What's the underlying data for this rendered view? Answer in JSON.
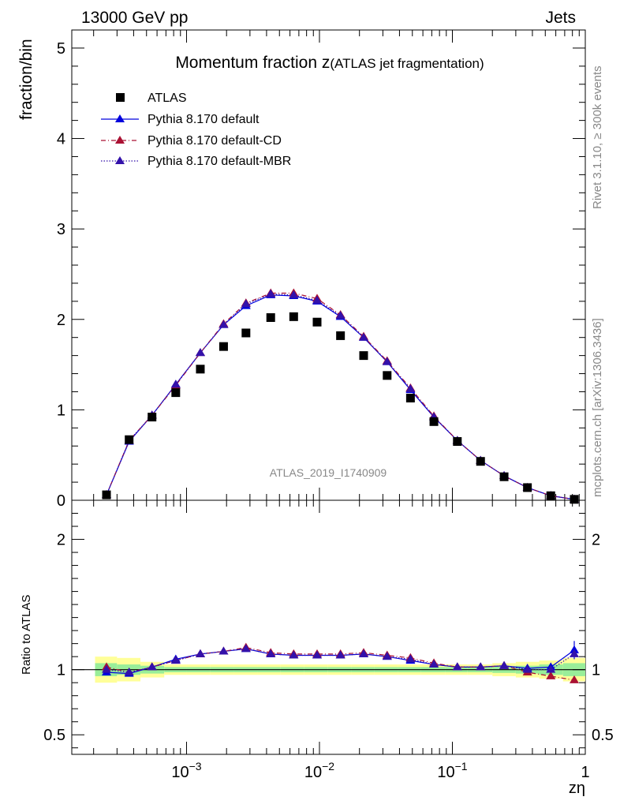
{
  "header": {
    "left": "13000 GeV pp",
    "right": "Jets",
    "rivet": "Rivet 3.1.10, ≥ 300k events",
    "source": "mcplots.cern.ch [arXiv:1306.3436]",
    "analysis": "ATLAS_2019_I1740909"
  },
  "chart_data": {
    "type": "scatter",
    "title_main": "Momentum fraction z",
    "title_sub": "(ATLAS jet fragmentation)",
    "xlabel": "zη",
    "ylabel_main": "fraction/bin",
    "ylabel_ratio": "Ratio to ATLAS",
    "xscale": "log",
    "xlim": [
      0.000137,
      1.0
    ],
    "ylim_main": [
      0,
      5.2
    ],
    "ylim_ratio": [
      0.35,
      2.3
    ],
    "main_ticks": [
      "0",
      "1",
      "2",
      "3",
      "4",
      "5"
    ],
    "main_tick_values": [
      0,
      1,
      2,
      3,
      4,
      5
    ],
    "ratio_ticks": [
      "0.5",
      "1",
      "2"
    ],
    "ratio_tick_values": [
      0.5,
      1,
      2
    ],
    "x_ticks": [
      "10",
      "10",
      "10",
      "1"
    ],
    "x_tick_exps": [
      "−3",
      "−2",
      "−1",
      ""
    ],
    "x_tick_values": [
      0.001,
      0.01,
      0.1,
      1
    ],
    "x": [
      0.00025,
      0.00037,
      0.00055,
      0.00083,
      0.00127,
      0.0019,
      0.0028,
      0.0043,
      0.0064,
      0.0096,
      0.0144,
      0.0215,
      0.0323,
      0.0484,
      0.0726,
      0.109,
      0.163,
      0.245,
      0.367,
      0.55,
      0.826
    ],
    "series": [
      {
        "name": "ATLAS",
        "style": "data",
        "color": "#000000",
        "values": [
          0.06,
          0.67,
          0.92,
          1.19,
          1.45,
          1.7,
          1.85,
          2.02,
          2.03,
          1.97,
          1.82,
          1.6,
          1.38,
          1.13,
          0.87,
          0.65,
          0.43,
          0.26,
          0.14,
          0.05,
          0.01
        ],
        "ratio": [
          1,
          1,
          1,
          1,
          1,
          1,
          1,
          1,
          1,
          1,
          1,
          1,
          1,
          1,
          1,
          1,
          1,
          1,
          1,
          1,
          1
        ]
      },
      {
        "name": "Pythia 8.170 default",
        "style": "solid",
        "color": "#0000dd",
        "values": [
          0.06,
          0.65,
          0.94,
          1.28,
          1.63,
          1.94,
          2.15,
          2.27,
          2.26,
          2.2,
          2.03,
          1.8,
          1.53,
          1.22,
          0.92,
          0.66,
          0.44,
          0.27,
          0.14,
          0.05,
          0.01
        ],
        "ratio": [
          0.98,
          0.97,
          1.02,
          1.08,
          1.12,
          1.14,
          1.16,
          1.12,
          1.11,
          1.11,
          1.11,
          1.12,
          1.1,
          1.07,
          1.04,
          1.02,
          1.02,
          1.03,
          1.01,
          1.02,
          1.15
        ]
      },
      {
        "name": "Pythia 8.170 default-CD",
        "style": "dashdot",
        "color": "#aa1133",
        "values": [
          0.06,
          0.66,
          0.94,
          1.27,
          1.63,
          1.95,
          2.18,
          2.29,
          2.29,
          2.23,
          2.05,
          1.81,
          1.54,
          1.24,
          0.93,
          0.66,
          0.44,
          0.27,
          0.14,
          0.05,
          0.01
        ],
        "ratio": [
          1.02,
          0.98,
          1.02,
          1.07,
          1.12,
          1.14,
          1.17,
          1.13,
          1.12,
          1.12,
          1.12,
          1.13,
          1.11,
          1.09,
          1.05,
          1.02,
          1.02,
          1.03,
          0.98,
          0.95,
          0.92
        ]
      },
      {
        "name": "Pythia 8.170 default-MBR",
        "style": "dotted",
        "color": "#3311aa",
        "values": [
          0.06,
          0.66,
          0.94,
          1.28,
          1.63,
          1.94,
          2.17,
          2.28,
          2.27,
          2.21,
          2.04,
          1.8,
          1.53,
          1.23,
          0.92,
          0.66,
          0.44,
          0.27,
          0.14,
          0.05,
          0.01
        ],
        "ratio": [
          1.0,
          0.98,
          1.02,
          1.07,
          1.12,
          1.14,
          1.16,
          1.12,
          1.11,
          1.11,
          1.11,
          1.12,
          1.1,
          1.08,
          1.04,
          1.02,
          1.02,
          1.03,
          1.0,
          1.0,
          1.12
        ]
      }
    ],
    "ratio_error_default_last": 0.07,
    "bands": {
      "edges": [
        0.000205,
        0.0003,
        0.00045,
        0.00068,
        0.001,
        0.0015,
        0.00227,
        0.0034,
        0.0051,
        0.0077,
        0.0115,
        0.0173,
        0.026,
        0.039,
        0.058,
        0.088,
        0.13,
        0.2,
        0.3,
        0.45,
        0.68,
        1.0
      ],
      "stat_sys_outer": [
        0.1,
        0.09,
        0.06,
        0.04,
        0.04,
        0.04,
        0.04,
        0.04,
        0.04,
        0.04,
        0.04,
        0.04,
        0.04,
        0.04,
        0.04,
        0.04,
        0.04,
        0.05,
        0.06,
        0.07,
        0.09
      ],
      "stat_sys_inner": [
        0.05,
        0.04,
        0.03,
        0.02,
        0.02,
        0.02,
        0.02,
        0.02,
        0.02,
        0.02,
        0.02,
        0.02,
        0.02,
        0.02,
        0.02,
        0.02,
        0.02,
        0.025,
        0.03,
        0.04,
        0.05
      ],
      "outer_color": "#ffff99",
      "inner_color": "#99ee99"
    }
  }
}
